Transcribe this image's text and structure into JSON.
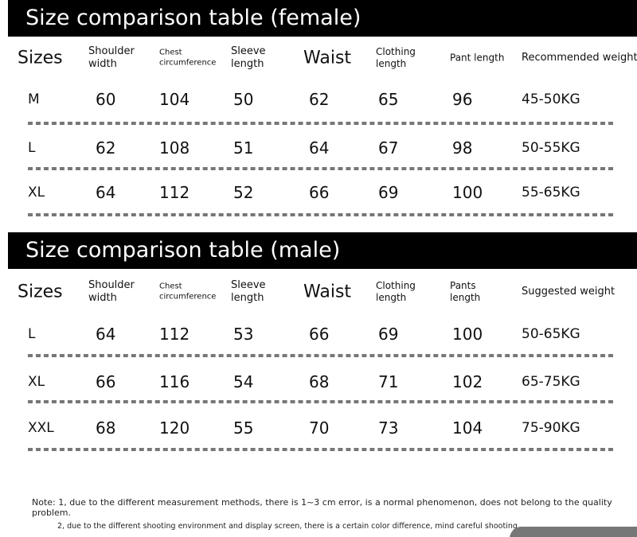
{
  "female": {
    "title": "Size comparison table (female)",
    "headers": [
      [
        "Sizes"
      ],
      [
        "Shoulder",
        "width"
      ],
      [
        "Chest",
        "circumference"
      ],
      [
        "Sleeve",
        "length"
      ],
      [
        "Waist"
      ],
      [
        "Clothing",
        "length"
      ],
      [
        "Pant length"
      ],
      [
        "Recommended weight"
      ]
    ],
    "rows": [
      [
        "M",
        60,
        104,
        50,
        62,
        65,
        96,
        "45-50KG"
      ],
      [
        "L",
        62,
        108,
        51,
        64,
        67,
        98,
        "50-55KG"
      ],
      [
        "XL",
        64,
        112,
        52,
        66,
        69,
        100,
        "55-65KG"
      ]
    ]
  },
  "male": {
    "title": "Size comparison table (male)",
    "headers": [
      [
        "Sizes"
      ],
      [
        "Shoulder",
        "width"
      ],
      [
        "Chest",
        "circumference"
      ],
      [
        "Sleeve",
        "length"
      ],
      [
        "Waist"
      ],
      [
        "Clothing",
        "length"
      ],
      [
        "Pants",
        "length"
      ],
      [
        "Suggested weight"
      ]
    ],
    "rows": [
      [
        "L",
        64,
        112,
        53,
        66,
        69,
        100,
        "50-65KG"
      ],
      [
        "XL",
        66,
        116,
        54,
        68,
        71,
        102,
        "65-75KG"
      ],
      [
        "XXL",
        68,
        120,
        55,
        70,
        73,
        104,
        "75-90KG"
      ]
    ]
  },
  "notes": [
    "Note: 1, due to the different measurement methods, there is 1~3 cm error, is a normal phenomenon, does not belong to the quality problem.",
    "2, due to the different shooting environment and display screen, there is a certain color difference, mind careful shooting."
  ]
}
